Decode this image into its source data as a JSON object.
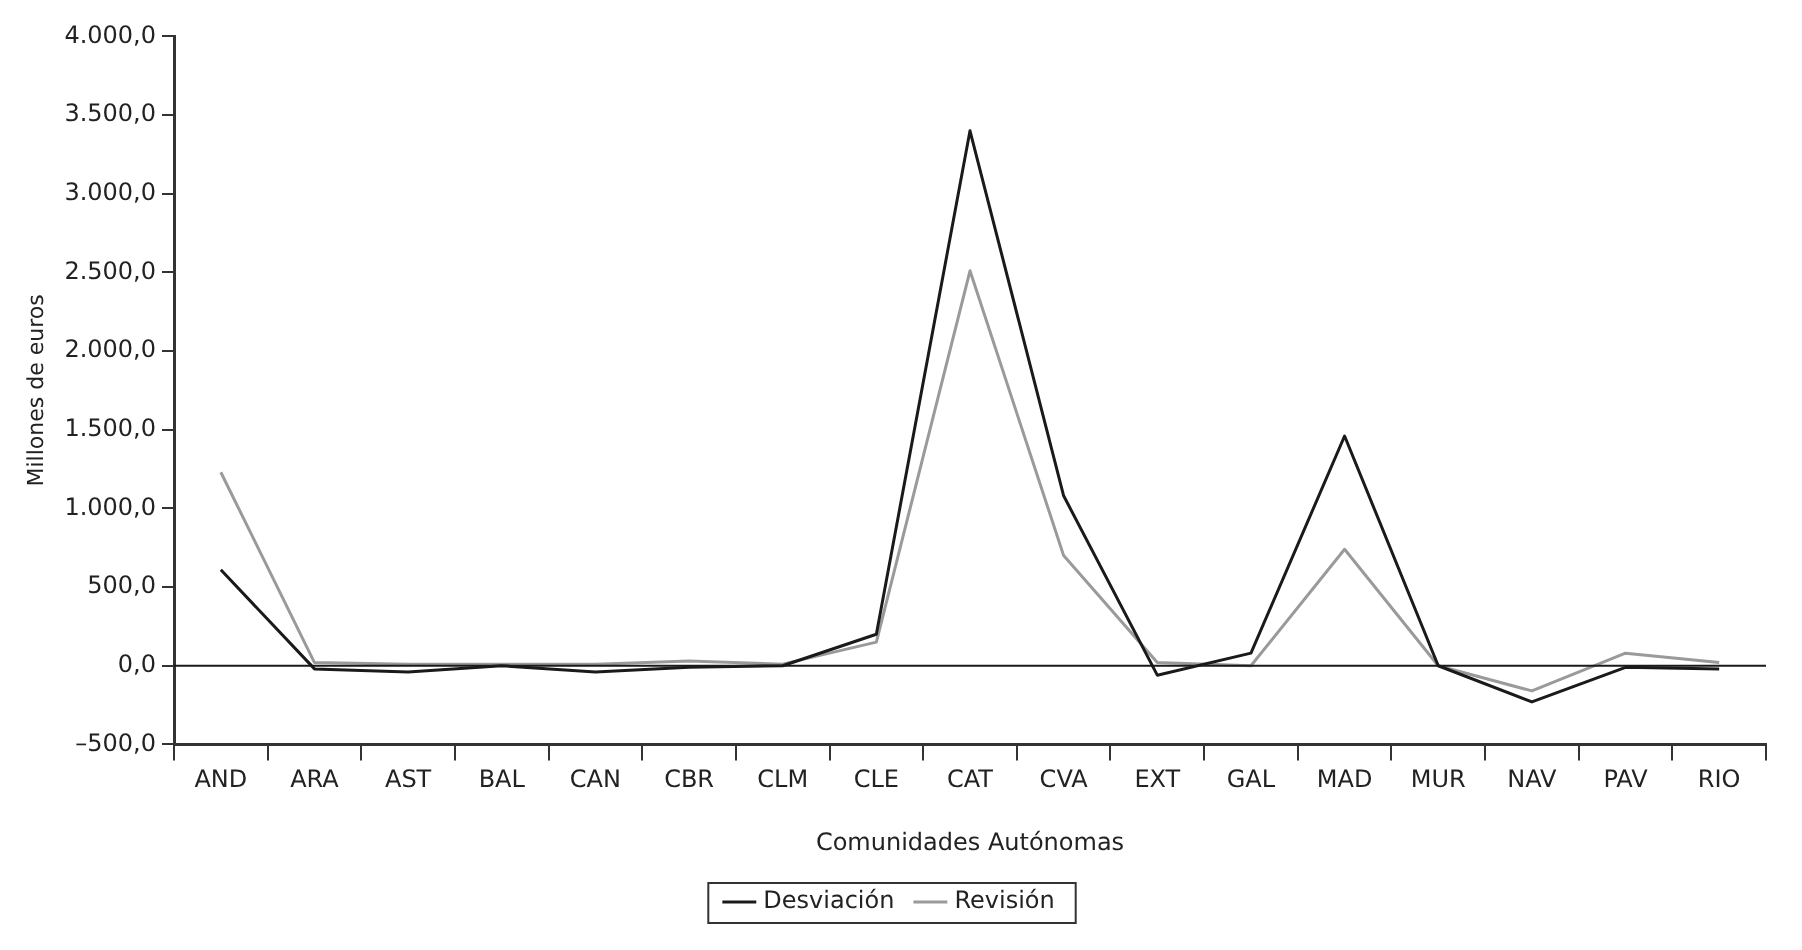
{
  "chart_data": {
    "type": "line",
    "xlabel": "Comunidades Autónomas",
    "ylabel": "Millones de euros",
    "categories": [
      "AND",
      "ARA",
      "AST",
      "BAL",
      "CAN",
      "CBR",
      "CLM",
      "CLE",
      "CAT",
      "CVA",
      "EXT",
      "GAL",
      "MAD",
      "MUR",
      "NAV",
      "PAV",
      "RIO"
    ],
    "series": [
      {
        "name": "Desviación",
        "color": "#1a1a1a",
        "values": [
          610,
          -20,
          -40,
          0,
          -40,
          -10,
          0,
          200,
          3400,
          1080,
          -60,
          80,
          1460,
          0,
          -230,
          -10,
          -20
        ]
      },
      {
        "name": "Revisión",
        "color": "#9a9a9a",
        "values": [
          1230,
          20,
          10,
          10,
          10,
          30,
          10,
          150,
          2510,
          700,
          20,
          0,
          740,
          0,
          -160,
          80,
          20
        ]
      }
    ],
    "ylim": [
      -500,
      4000
    ],
    "yticks": [
      {
        "value": -500,
        "label": "–500,0"
      },
      {
        "value": 0,
        "label": "0,0"
      },
      {
        "value": 500,
        "label": "500,0"
      },
      {
        "value": 1000,
        "label": "1.000,0"
      },
      {
        "value": 1500,
        "label": "1.500,0"
      },
      {
        "value": 2000,
        "label": "2.000,0"
      },
      {
        "value": 2500,
        "label": "2.500,0"
      },
      {
        "value": 3000,
        "label": "3.000,0"
      },
      {
        "value": 3500,
        "label": "3.500,0"
      },
      {
        "value": 4000,
        "label": "4.000,0"
      }
    ],
    "ref_lines": [
      {
        "axis": "y",
        "value": 0,
        "color": "#1a1a1a"
      }
    ],
    "grid": false,
    "legend": "bottom",
    "marker": "none",
    "line_style": "solid"
  }
}
